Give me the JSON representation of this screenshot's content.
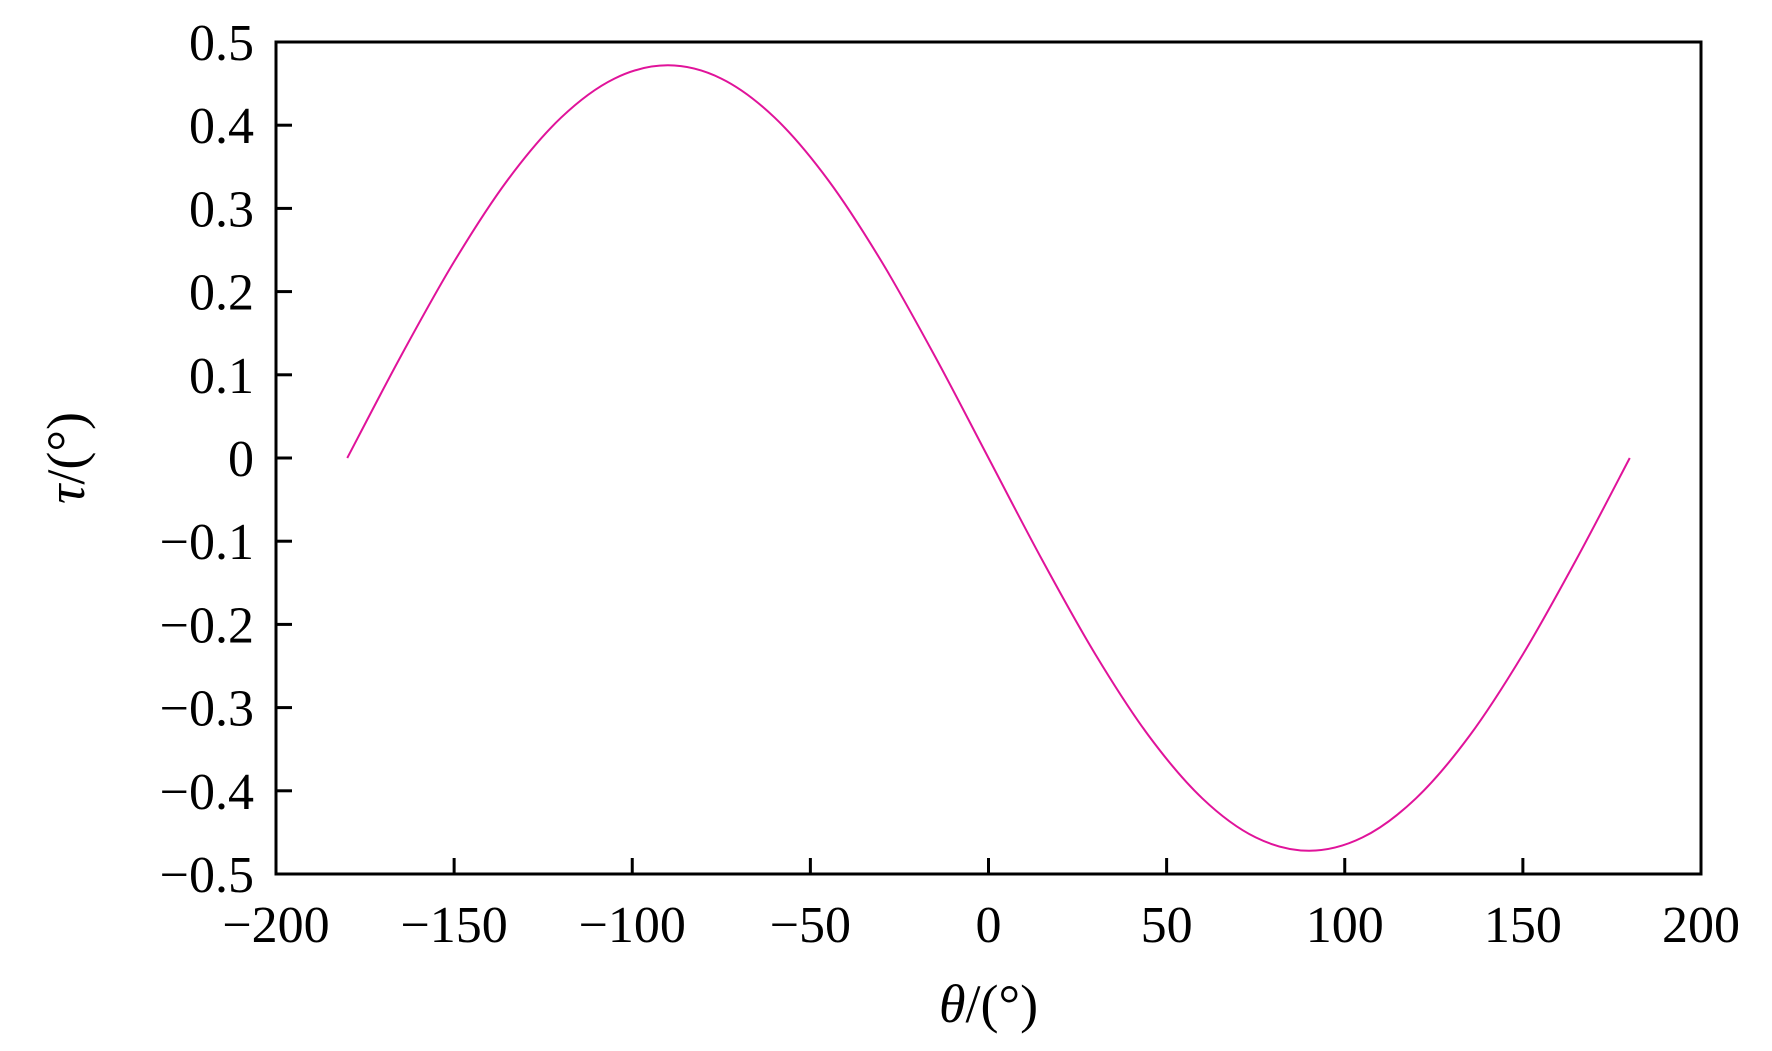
{
  "chart_data": {
    "type": "line",
    "title": "",
    "xlabel": {
      "symbol": "θ",
      "unit": "/(°)"
    },
    "ylabel": {
      "symbol": "τ",
      "unit": "/(°)"
    },
    "xlim": [
      -200,
      200
    ],
    "ylim": [
      -0.5,
      0.5
    ],
    "xticks": [
      -200,
      -150,
      -100,
      -50,
      0,
      50,
      100,
      150,
      200
    ],
    "yticks": [
      0.5,
      0.4,
      0.3,
      0.2,
      0.1,
      0,
      -0.1,
      -0.2,
      -0.3,
      -0.4,
      -0.5
    ],
    "xtick_labels": [
      "−200",
      "−150",
      "−100",
      "−50",
      "0",
      "50",
      "100",
      "150",
      "200"
    ],
    "ytick_labels": [
      "0.5",
      "0.4",
      "0.3",
      "0.2",
      "0.1",
      "0",
      "−0.1",
      "−0.2",
      "−0.3",
      "−0.4",
      "−0.5"
    ],
    "grid": false,
    "legend": "none",
    "series": [
      {
        "color": "#e0139a",
        "x": [
          -180,
          -165,
          -150,
          -135,
          -120,
          -105,
          -90,
          -75,
          -60,
          -45,
          -30,
          -15,
          0,
          15,
          30,
          45,
          60,
          75,
          90,
          105,
          120,
          135,
          150,
          165,
          180
        ],
        "y": [
          0,
          0.122,
          0.236,
          0.334,
          0.409,
          0.456,
          0.472,
          0.456,
          0.409,
          0.334,
          0.236,
          0.122,
          0,
          -0.122,
          -0.236,
          -0.334,
          -0.409,
          -0.456,
          -0.472,
          -0.456,
          -0.409,
          -0.334,
          -0.236,
          -0.122,
          0
        ]
      }
    ]
  }
}
